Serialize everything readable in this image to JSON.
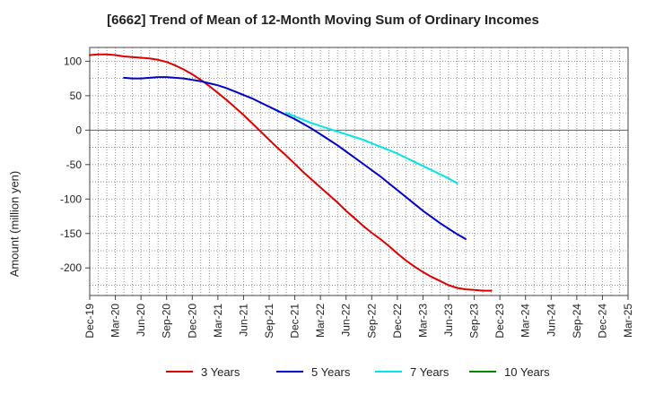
{
  "chart_data": {
    "type": "line",
    "title": "[6662]  Trend of Mean of 12-Month Moving Sum of Ordinary Incomes",
    "xlabel": "",
    "ylabel": "Amount (million yen)",
    "ylim": [
      -240,
      120
    ],
    "yticks": [
      100,
      50,
      0,
      -50,
      -100,
      -150,
      -200
    ],
    "grid": true,
    "legend_position": "bottom",
    "x_tick_labels": [
      "Dec-19",
      "Mar-20",
      "Jun-20",
      "Sep-20",
      "Dec-20",
      "Mar-21",
      "Jun-21",
      "Sep-21",
      "Dec-21",
      "Mar-22",
      "Jun-22",
      "Sep-22",
      "Dec-22",
      "Mar-23",
      "Jun-23",
      "Sep-23",
      "Dec-23",
      "Mar-24",
      "Jun-24",
      "Sep-24",
      "Dec-24",
      "Mar-25"
    ],
    "series": [
      {
        "name": "3 Years",
        "color": "#dd0000",
        "start_index": 0,
        "values": [
          109,
          110,
          110,
          109,
          107,
          106,
          105,
          104,
          102,
          99,
          94,
          88,
          81,
          73,
          64,
          54,
          44,
          33,
          22,
          10,
          -2,
          -14,
          -26,
          -37,
          -49,
          -61,
          -72,
          -83,
          -94,
          -105,
          -117,
          -128,
          -139,
          -149,
          -158,
          -168,
          -179,
          -189,
          -198,
          -206,
          -213,
          -219,
          -225,
          -229,
          -231,
          -232,
          -233,
          -233
        ]
      },
      {
        "name": "5 Years",
        "color": "#0000cc",
        "start_index": 4,
        "values": [
          76,
          75,
          75,
          76,
          77,
          77,
          76,
          75,
          73,
          71,
          68,
          65,
          61,
          56,
          51,
          46,
          40,
          34,
          28,
          22,
          16,
          9,
          2,
          -6,
          -14,
          -22,
          -31,
          -40,
          -49,
          -58,
          -67,
          -77,
          -87,
          -97,
          -107,
          -117,
          -126,
          -135,
          -143,
          -151,
          -158
        ]
      },
      {
        "name": "7 Years",
        "color": "#00e5e5",
        "start_index": 23,
        "values": [
          25,
          20,
          15,
          10,
          6,
          2,
          -2,
          -6,
          -10,
          -14,
          -19,
          -24,
          -29,
          -34,
          -40,
          -46,
          -52,
          -58,
          -64,
          -70,
          -77
        ]
      },
      {
        "name": "10 Years",
        "color": "#008800",
        "start_index": 0,
        "values": []
      }
    ]
  }
}
